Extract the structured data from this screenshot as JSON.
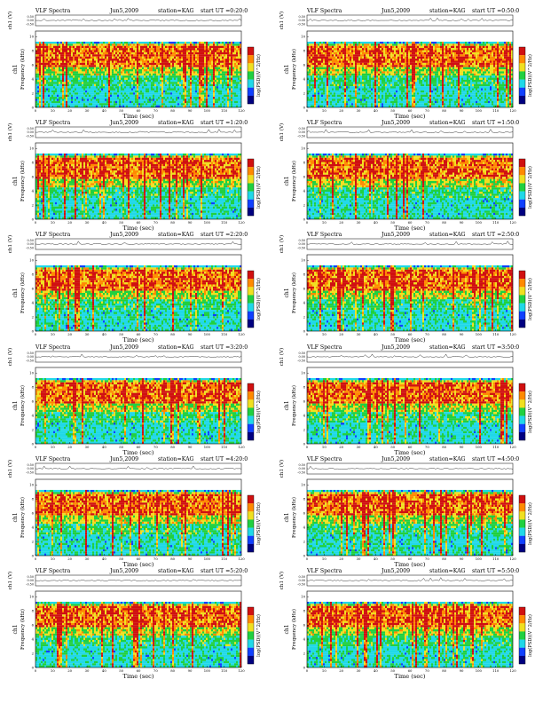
{
  "common": {
    "header": {
      "app": "VLF Spectra",
      "date": "Jun5,2009",
      "station": "station=KAG",
      "start_prefix": "start UT ="
    },
    "xlabel": "Time (sec)",
    "ylabel_top": "ch1 (V)",
    "ylabel_spec_a": "ch1",
    "ylabel_spec_b": "Frequency (kHz)",
    "colorbar_label": "log(PSD)(V^2/Hz)",
    "x_ticks": [
      "0",
      "10",
      "20",
      "30",
      "40",
      "50",
      "60",
      "70",
      "80",
      "90",
      "100",
      "110",
      "120"
    ],
    "y_ticks": [
      "0",
      "2",
      "4",
      "6",
      "8",
      "10"
    ],
    "top_ticks": [
      "0.50",
      "0.00",
      "-0.50"
    ],
    "colorbar_colors": [
      "#d01010",
      "#ff8a00",
      "#f0e020",
      "#20d040",
      "#20d8e8",
      "#1040ff",
      "#000080"
    ]
  },
  "panels": [
    {
      "start": "0:20:0"
    },
    {
      "start": "0:50:0"
    },
    {
      "start": "1:20:0"
    },
    {
      "start": "1:50:0"
    },
    {
      "start": "2:20:0"
    },
    {
      "start": "2:50:0"
    },
    {
      "start": "3:20:0"
    },
    {
      "start": "3:50:0"
    },
    {
      "start": "4:20:0"
    },
    {
      "start": "4:50:0"
    },
    {
      "start": "5:20:0"
    },
    {
      "start": "5:50:0"
    }
  ],
  "chart_data": {
    "type": "heatmap",
    "x_range": [
      0,
      120
    ],
    "y_range": [
      0,
      10
    ],
    "top_trace_range": [
      -0.5,
      0.5
    ],
    "grid": false,
    "panel_count": 12,
    "layout": "6 rows x 2 columns"
  }
}
